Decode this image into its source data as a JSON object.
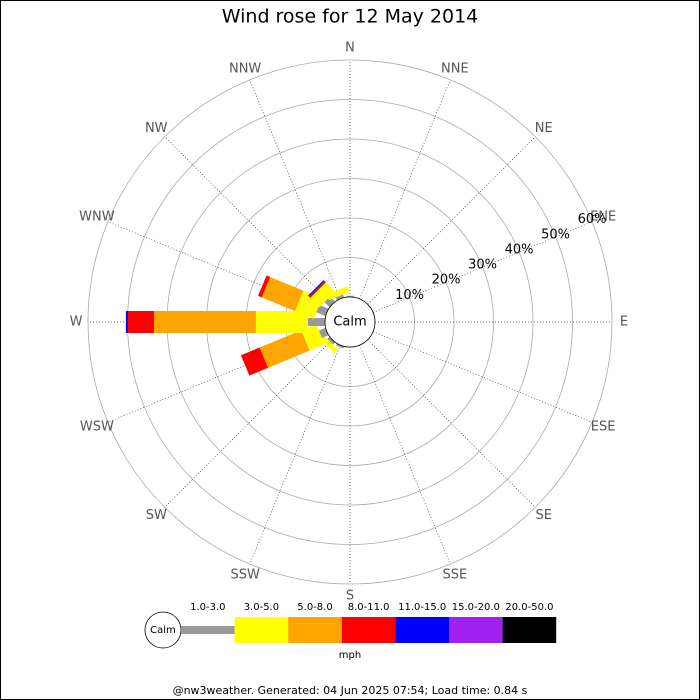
{
  "chart_data": {
    "type": "windrose",
    "title": "Wind rose for 12 May 2014",
    "directions": [
      "N",
      "NNE",
      "NE",
      "ENE",
      "E",
      "ESE",
      "SE",
      "SSE",
      "S",
      "SSW",
      "SW",
      "WSW",
      "W",
      "WNW",
      "NW",
      "NNW"
    ],
    "calm_label": "Calm",
    "unit": "mph",
    "rlim": [
      0,
      60
    ],
    "rticks": [
      {
        "value": 10,
        "label": "10%"
      },
      {
        "value": 20,
        "label": "20%"
      },
      {
        "value": 30,
        "label": "30%"
      },
      {
        "value": 40,
        "label": "40%"
      },
      {
        "value": 50,
        "label": "50%"
      },
      {
        "value": 60,
        "label": "60%"
      }
    ],
    "series": [
      {
        "name": "1.0-3.0",
        "color": "#999999",
        "values": [
          0.3,
          0,
          0,
          0,
          0,
          0,
          0,
          0,
          0,
          0.5,
          0.8,
          1.8,
          4.3,
          2.5,
          1.8,
          0.8
        ]
      },
      {
        "name": "3.0-5.0",
        "color": "#ffff00",
        "values": [
          0,
          0,
          0,
          0,
          0,
          0,
          0,
          0,
          0,
          0,
          1.2,
          4.1,
          13.2,
          5.1,
          3.3,
          1.5
        ]
      },
      {
        "name": "5.0-8.0",
        "color": "#ffa500",
        "values": [
          0,
          0,
          0,
          0,
          0,
          0,
          0,
          0,
          0,
          0,
          0,
          11.4,
          25.8,
          9.1,
          0,
          0
        ]
      },
      {
        "name": "8.0-11.0",
        "color": "#ff0000",
        "values": [
          0,
          0,
          0,
          0,
          0,
          0,
          0,
          0,
          0,
          0,
          0,
          5.1,
          6.6,
          1.0,
          0.5,
          0
        ]
      },
      {
        "name": "11.0-15.0",
        "color": "#0000ff",
        "values": [
          0,
          0,
          0,
          0,
          0,
          0,
          0,
          0,
          0,
          0,
          0,
          0,
          0.5,
          0,
          0.3,
          0
        ]
      },
      {
        "name": "15.0-20.0",
        "color": "#a020f0",
        "values": [
          0,
          0,
          0,
          0,
          0,
          0,
          0,
          0,
          0,
          0,
          0,
          0,
          0,
          0,
          0,
          0
        ]
      },
      {
        "name": "20.0-50.0",
        "color": "#000000",
        "values": [
          0,
          0,
          0,
          0,
          0,
          0,
          0,
          0,
          0,
          0,
          0,
          0,
          0,
          0,
          0,
          0
        ]
      }
    ],
    "footer": "@nw3weather. Generated: 04 Jun 2025 07:54; Load time: 0.84 s"
  }
}
